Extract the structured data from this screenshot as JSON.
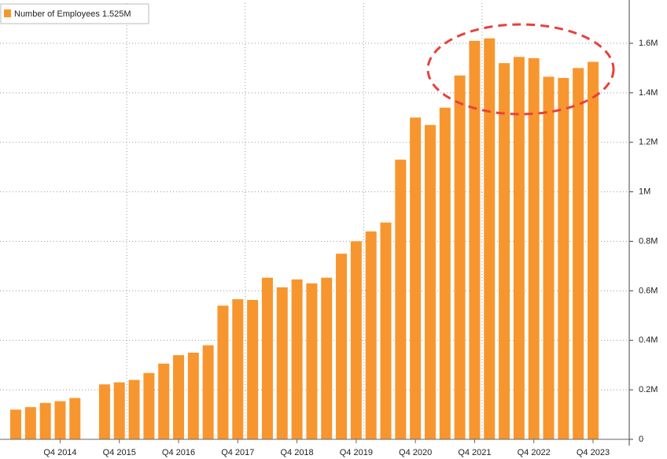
{
  "chart_data": {
    "type": "bar",
    "categories": [
      null,
      null,
      null,
      "Q4 2014",
      null,
      null,
      null,
      "Q4 2015",
      null,
      null,
      null,
      "Q4 2016",
      null,
      null,
      null,
      "Q4 2017",
      null,
      null,
      null,
      "Q4 2018",
      null,
      null,
      null,
      "Q4 2019",
      null,
      null,
      null,
      "Q4 2020",
      null,
      null,
      null,
      "Q4 2021",
      null,
      null,
      null,
      "Q4 2022",
      null,
      null,
      null,
      "Q4 2023"
    ],
    "series": [
      {
        "name": "Number of Employees 1.525M",
        "color": "#f7962f",
        "values": [
          0.12,
          0.13,
          0.147,
          0.154,
          0.167,
          null,
          0.222,
          0.23,
          0.24,
          0.268,
          0.306,
          0.34,
          0.35,
          0.38,
          0.54,
          0.566,
          0.563,
          0.653,
          0.614,
          0.646,
          0.63,
          0.653,
          0.75,
          0.8,
          0.84,
          0.876,
          1.13,
          1.3,
          1.27,
          1.34,
          1.47,
          1.61,
          1.62,
          1.52,
          1.545,
          1.54,
          1.465,
          1.46,
          1.5,
          1.525
        ]
      }
    ],
    "ylim": [
      0,
      1.7
    ],
    "yticks": [
      0,
      {
        "value": 0.2,
        "label": "0.2M"
      },
      {
        "value": 0.4,
        "label": "0.4M"
      },
      {
        "value": 0.6,
        "label": "0.6M"
      },
      {
        "value": 0.8,
        "label": "0.8M"
      },
      {
        "value": 1,
        "label": "1M"
      },
      {
        "value": 1.2,
        "label": "1.2M"
      },
      {
        "value": 1.4,
        "label": "1.4M"
      },
      {
        "value": 1.6,
        "label": "1.6M"
      }
    ],
    "grid": true
  }
}
